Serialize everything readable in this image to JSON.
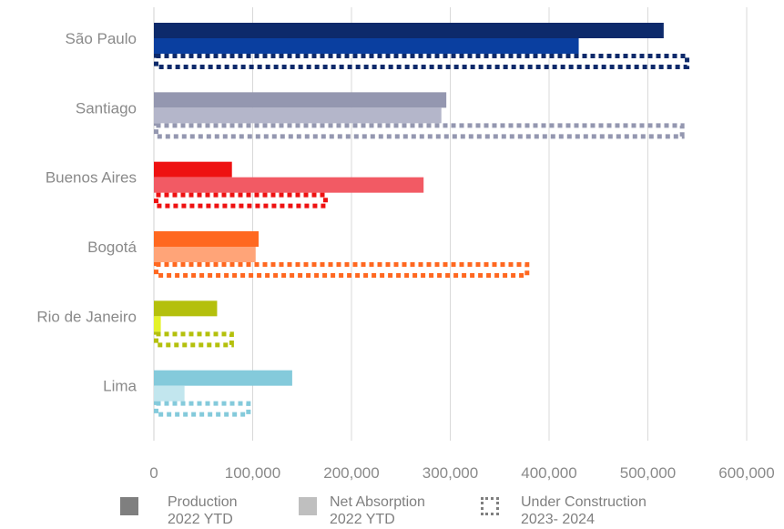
{
  "chart_data": {
    "type": "bar",
    "orientation": "horizontal",
    "categories": [
      "São Paulo",
      "Santiago",
      "Buenos Aires",
      "Bogotá",
      "Rio de Janeiro",
      "Lima"
    ],
    "series": [
      {
        "name": "Production 2022 YTD",
        "values": [
          516000,
          296000,
          79000,
          106000,
          64000,
          140000
        ]
      },
      {
        "name": "Net Absorption 2022 YTD",
        "values": [
          430000,
          291000,
          273000,
          103000,
          7000,
          31000
        ]
      },
      {
        "name": "Under Construction 2023- 2024",
        "values": [
          542000,
          537000,
          176000,
          380000,
          81000,
          98000
        ]
      }
    ],
    "category_colors": [
      {
        "production": "#0d2a6b",
        "absorption": "#0a3fa0",
        "construction": "#0d2a6b"
      },
      {
        "production": "#9497b0",
        "absorption": "#b4b6ca",
        "construction": "#9497b0"
      },
      {
        "production": "#ee1111",
        "absorption": "#f25a64",
        "construction": "#ee1111"
      },
      {
        "production": "#ff6820",
        "absorption": "#ffa478",
        "construction": "#ff6820"
      },
      {
        "production": "#b4c00c",
        "absorption": "#e4f22a",
        "construction": "#b4c00c"
      },
      {
        "production": "#84cadb",
        "absorption": "#c2e6ee",
        "construction": "#84cadb"
      }
    ],
    "xlim": [
      0,
      600000
    ],
    "xticks": [
      0,
      100000,
      200000,
      300000,
      400000,
      500000,
      600000
    ],
    "xtick_labels": [
      "0",
      "100,000",
      "200,000",
      "300,000",
      "400,000",
      "500,000",
      "600,000"
    ],
    "grid": "vertical",
    "legend_position": "bottom"
  },
  "legend": [
    {
      "line1": "Production",
      "line2": "2022 YTD",
      "style": "solid",
      "color": "#7f7f7f"
    },
    {
      "line1": "Net Absorption",
      "line2": "2022 YTD",
      "style": "solid",
      "color": "#bfbfbf"
    },
    {
      "line1": "Under Construction",
      "line2": "2023- 2024",
      "style": "dotted",
      "color": "#7f7f7f"
    }
  ]
}
